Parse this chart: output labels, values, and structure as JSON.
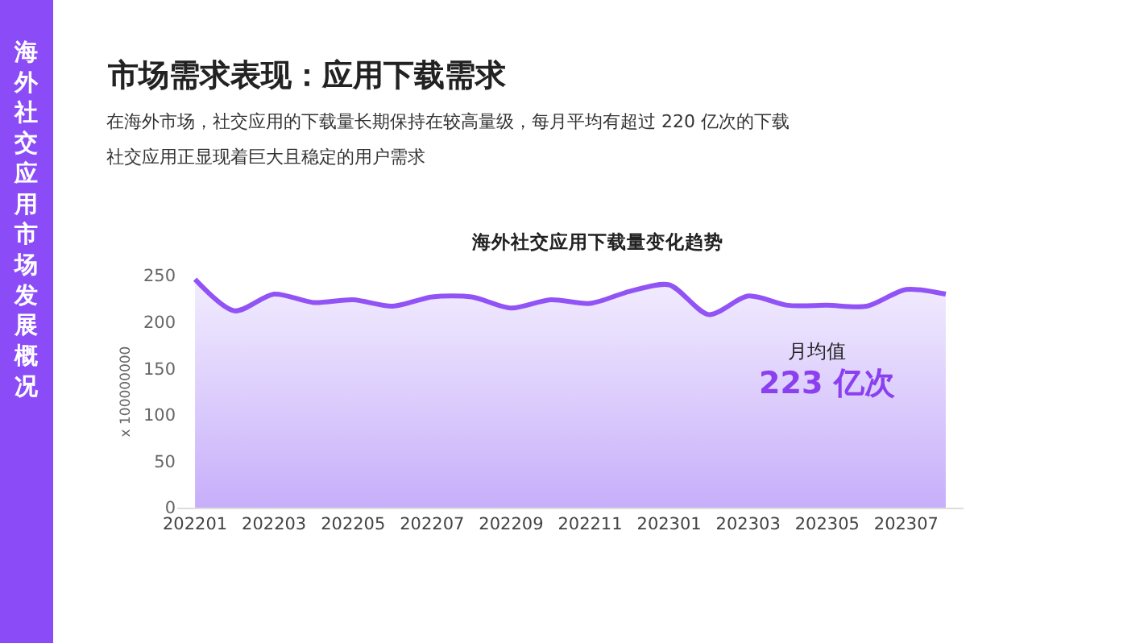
{
  "chart_data": {
    "type": "area",
    "title": "市场需求表现：应用下载需求",
    "subtitle": "在海外市场，社交应用的下载量长期保持在较高量级，每月平均有超过 220 亿次的下载",
    "ylabel": "x 100000000",
    "annotations": [
      "海外社交应用下载量变化趋势",
      "海外社交应用市场发展概况",
      "社交应用正显现着巨大且稳定的用户需求",
      "月均值",
      "223 亿次"
    ],
    "categories": [
      "202201",
      null,
      "202203",
      null,
      "202205",
      null,
      "202207",
      null,
      "202209",
      null,
      "202211",
      null,
      "202301",
      null,
      "202303",
      null,
      "202305",
      null,
      "202307",
      null
    ],
    "series": [
      {
        "color": "#9153f6",
        "values": [
          246,
          212,
          230,
          221,
          224,
          217,
          227,
          227,
          215,
          224,
          220,
          233,
          240,
          208,
          228,
          218,
          218,
          217,
          235,
          230
        ]
      }
    ],
    "ylim": [
      0,
      250
    ],
    "yticks": [
      0,
      50,
      100,
      150,
      200,
      250
    ],
    "grid": false,
    "legend": false,
    "marker": "none",
    "line_style": "solid"
  }
}
